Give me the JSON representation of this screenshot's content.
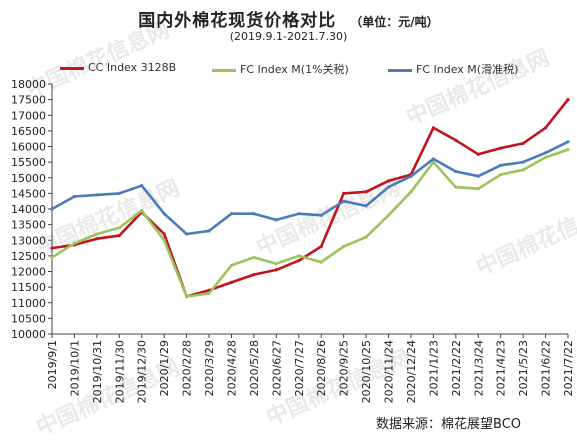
{
  "header": {
    "title": "国内外棉花现货价格对比",
    "unit": "（单位：元/吨）",
    "period": "(2019.9.1-2021.7.30)"
  },
  "source": "数据来源：棉花展望BCO",
  "watermark": "中国棉花信息网",
  "chart_data": {
    "type": "line",
    "ylim": [
      10000,
      18000
    ],
    "yticks": [
      10000,
      10500,
      11000,
      11500,
      12000,
      12500,
      13000,
      13500,
      14000,
      14500,
      15000,
      15500,
      16000,
      16500,
      17000,
      17500,
      18000
    ],
    "categories": [
      "2019/9/1",
      "2019/10/1",
      "2019/10/31",
      "2019/11/30",
      "2019/12/30",
      "2020/1/29",
      "2020/2/28",
      "2020/3/29",
      "2020/4/28",
      "2020/5/28",
      "2020/6/27",
      "2020/7/27",
      "2020/8/26",
      "2020/9/25",
      "2020/10/25",
      "2020/11/24",
      "2020/12/24",
      "2021/1/23",
      "2021/2/22",
      "2021/3/24",
      "2021/4/23",
      "2021/5/23",
      "2021/6/22",
      "2021/7/22"
    ],
    "series": [
      {
        "name": "CC Index 3128B",
        "color": "#c0141e",
        "values": [
          12750,
          12850,
          13050,
          13150,
          13900,
          13200,
          11200,
          11400,
          11650,
          11900,
          12050,
          12350,
          12800,
          14500,
          14550,
          14900,
          15100,
          16600,
          16200,
          15750,
          15950,
          16100,
          16600,
          17500
        ]
      },
      {
        "name": "FC Index M(1%关税)",
        "color": "#9cc35c",
        "values": [
          12450,
          12900,
          13200,
          13400,
          13950,
          13000,
          11200,
          11300,
          12200,
          12450,
          12250,
          12500,
          12300,
          12800,
          13100,
          13800,
          14550,
          15500,
          14700,
          14650,
          15100,
          15250,
          15650,
          15900
        ]
      },
      {
        "name": "FC Index M(滑准税)",
        "color": "#4b7cb8",
        "values": [
          14000,
          14400,
          14450,
          14500,
          14750,
          13850,
          13200,
          13300,
          13850,
          13850,
          13650,
          13850,
          13800,
          14250,
          14100,
          14700,
          15050,
          15600,
          15200,
          15050,
          15400,
          15500,
          15800,
          16150
        ]
      }
    ]
  }
}
